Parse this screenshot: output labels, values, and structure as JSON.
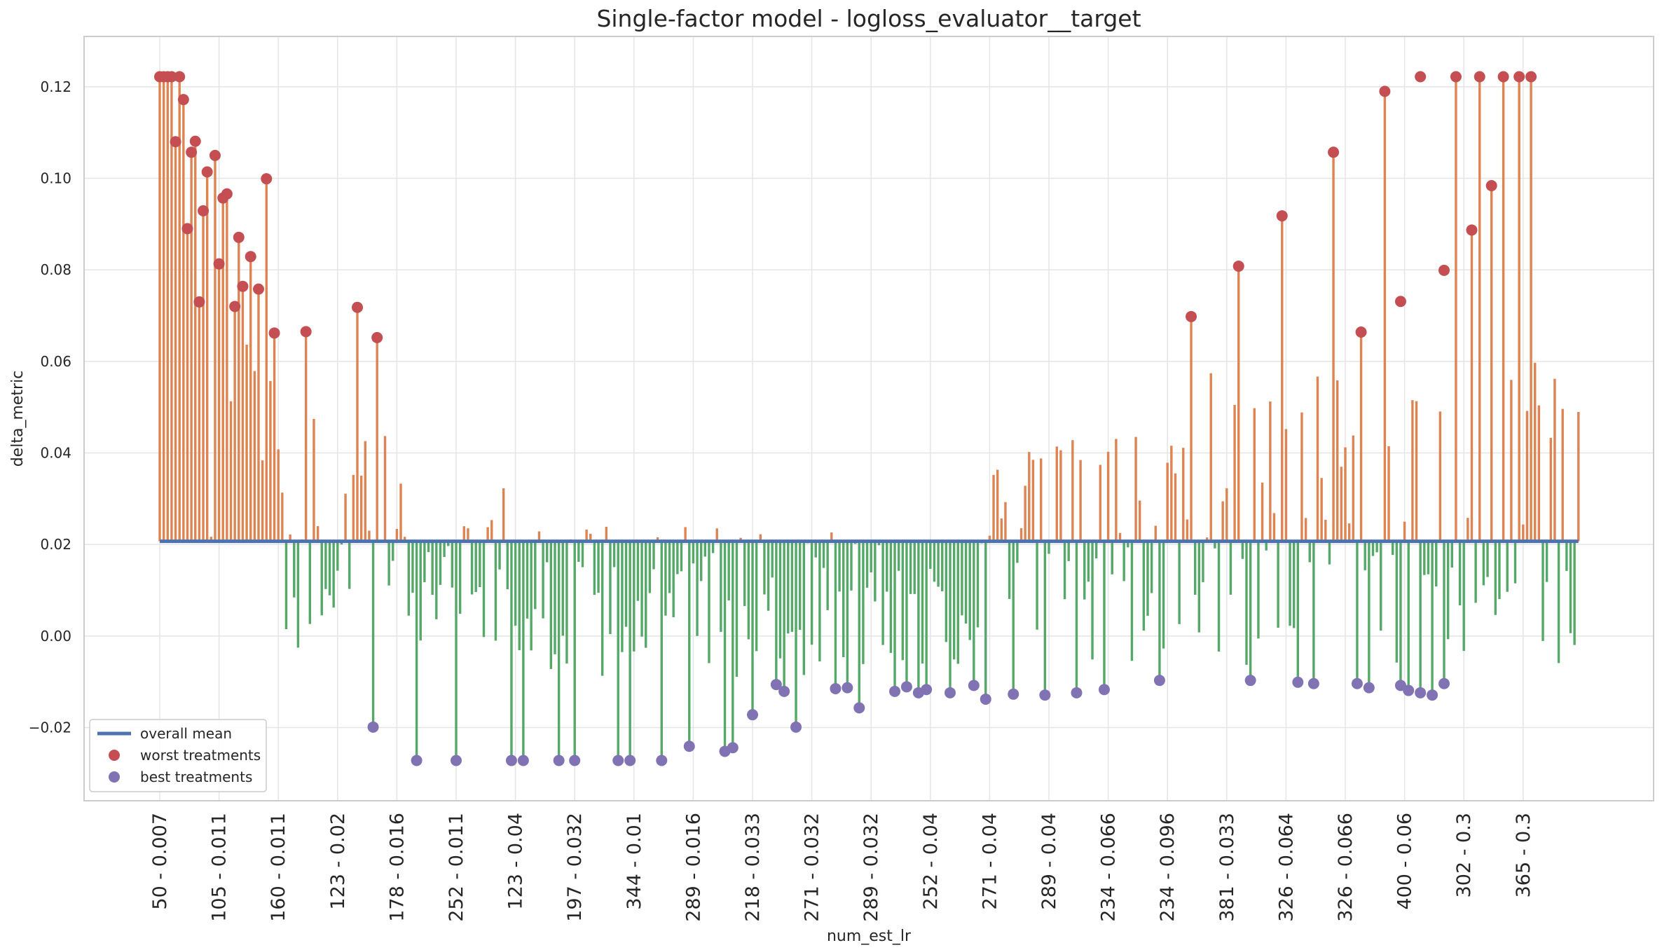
{
  "chart_data": {
    "type": "bar",
    "title": "Single-factor model - logloss_evaluator__target",
    "xlabel": "num_est_lr",
    "ylabel": "delta_metric",
    "ylim": [
      -0.036,
      0.131
    ],
    "yticks": [
      -0.02,
      0.0,
      0.02,
      0.04,
      0.06,
      0.08,
      0.1,
      0.12
    ],
    "ytick_labels": [
      "−0.02",
      "0.00",
      "0.02",
      "0.04",
      "0.06",
      "0.08",
      "0.10",
      "0.12"
    ],
    "n_points": 360,
    "xtick_every": 15,
    "xtick_labels": [
      "50 - 0.007",
      "105 - 0.011",
      "160 - 0.011",
      "123 - 0.02",
      "178 - 0.016",
      "252 - 0.011",
      "123 - 0.04",
      "197 - 0.032",
      "344 - 0.01",
      "289 - 0.016",
      "218 - 0.033",
      "271 - 0.032",
      "289 - 0.032",
      "252 - 0.04",
      "271 - 0.04",
      "289 - 0.04",
      "234 - 0.066",
      "234 - 0.096",
      "381 - 0.033",
      "326 - 0.064",
      "326 - 0.066",
      "400 - 0.06",
      "302 - 0.3",
      "365 - 0.3"
    ],
    "overall_mean": 0.0207,
    "grid": true,
    "legend_position": "lower-left",
    "legend": [
      "overall mean",
      "worst treatments",
      "best treatments"
    ],
    "colors": {
      "above": "#dd8452",
      "below": "#55a868",
      "mean": "#4c72b0",
      "worst": "#c44e52",
      "best": "#8172b3",
      "grid": "#e5e5e5",
      "frame": "#cccccc"
    },
    "series": [
      {
        "name": "worst treatments",
        "points": [
          [
            0,
            0.1222
          ],
          [
            1,
            0.1222
          ],
          [
            2,
            0.1222
          ],
          [
            3,
            0.1222
          ],
          [
            4,
            0.108
          ],
          [
            5,
            0.1222
          ],
          [
            6,
            0.1172
          ],
          [
            7,
            0.089
          ],
          [
            8,
            0.1057
          ],
          [
            9,
            0.1081
          ],
          [
            10,
            0.073
          ],
          [
            11,
            0.0929
          ],
          [
            12,
            0.1014
          ],
          [
            14,
            0.105
          ],
          [
            15,
            0.0813
          ],
          [
            16,
            0.0957
          ],
          [
            17,
            0.0966
          ],
          [
            19,
            0.072
          ],
          [
            20,
            0.0871
          ],
          [
            21,
            0.0764
          ],
          [
            23,
            0.0829
          ],
          [
            25,
            0.0758
          ],
          [
            27,
            0.0999
          ],
          [
            29,
            0.0662
          ],
          [
            37,
            0.0665
          ],
          [
            50,
            0.0718
          ],
          [
            55,
            0.0652
          ],
          [
            261,
            0.0698
          ],
          [
            273,
            0.0808
          ],
          [
            284,
            0.0918
          ],
          [
            297,
            0.1057
          ],
          [
            304,
            0.0664
          ],
          [
            310,
            0.119
          ],
          [
            314,
            0.0731
          ],
          [
            319,
            0.1222
          ],
          [
            325,
            0.0799
          ],
          [
            328,
            0.1222
          ],
          [
            332,
            0.0887
          ],
          [
            334,
            0.1222
          ],
          [
            337,
            0.0984
          ],
          [
            340,
            0.1222
          ],
          [
            344,
            0.1222
          ],
          [
            347,
            0.1222
          ]
        ]
      },
      {
        "name": "best treatments",
        "points": [
          [
            54,
            -0.0199
          ],
          [
            65,
            -0.0272
          ],
          [
            75,
            -0.0272
          ],
          [
            89,
            -0.0272
          ],
          [
            92,
            -0.0272
          ],
          [
            101,
            -0.0272
          ],
          [
            105,
            -0.0272
          ],
          [
            116,
            -0.0272
          ],
          [
            119,
            -0.0272
          ],
          [
            127,
            -0.0272
          ],
          [
            134,
            -0.0241
          ],
          [
            143,
            -0.0252
          ],
          [
            145,
            -0.0244
          ],
          [
            150,
            -0.0172
          ],
          [
            156,
            -0.0106
          ],
          [
            158,
            -0.0121
          ],
          [
            161,
            -0.0199
          ],
          [
            171,
            -0.0115
          ],
          [
            174,
            -0.0113
          ],
          [
            177,
            -0.0157
          ],
          [
            186,
            -0.0121
          ],
          [
            189,
            -0.0111
          ],
          [
            192,
            -0.0124
          ],
          [
            194,
            -0.0117
          ],
          [
            200,
            -0.0124
          ],
          [
            206,
            -0.0108
          ],
          [
            209,
            -0.0138
          ],
          [
            216,
            -0.0127
          ],
          [
            224,
            -0.0129
          ],
          [
            232,
            -0.0124
          ],
          [
            239,
            -0.0117
          ],
          [
            253,
            -0.0097
          ],
          [
            276,
            -0.0097
          ],
          [
            288,
            -0.0101
          ],
          [
            292,
            -0.0104
          ],
          [
            303,
            -0.0104
          ],
          [
            306,
            -0.0113
          ],
          [
            314,
            -0.0108
          ],
          [
            316,
            -0.0119
          ],
          [
            319,
            -0.0124
          ],
          [
            322,
            -0.0129
          ],
          [
            325,
            -0.0104
          ]
        ]
      }
    ]
  }
}
